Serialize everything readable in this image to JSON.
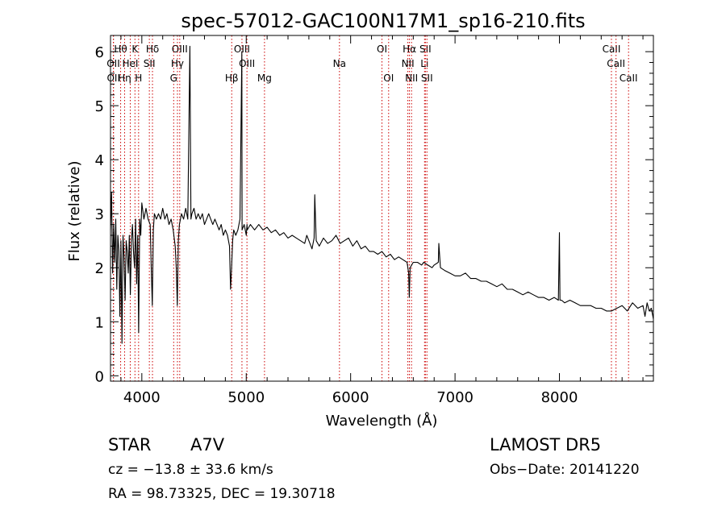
{
  "chart_data": {
    "type": "line",
    "title": "spec-57012-GAC100N17M1_sp16-210.fits",
    "xlabel": "Wavelength (Å)",
    "ylabel": "Flux (relative)",
    "xlim": [
      3700,
      8900
    ],
    "ylim": [
      -0.1,
      6.3
    ],
    "xticks": [
      4000,
      5000,
      6000,
      7000,
      8000
    ],
    "yticks": [
      0,
      1,
      2,
      3,
      4,
      5,
      6
    ],
    "grid": false,
    "line_color": "#000000",
    "marker_color": "#cc0000",
    "series": [
      {
        "x": [
          3700,
          3710,
          3720,
          3730,
          3740,
          3750,
          3760,
          3770,
          3780,
          3790,
          3800,
          3810,
          3820,
          3830,
          3840,
          3850,
          3860,
          3870,
          3880,
          3890,
          3900,
          3910,
          3920,
          3930,
          3940,
          3950,
          3960,
          3970,
          3980,
          3990,
          4000,
          4020,
          4040,
          4060,
          4080,
          4090,
          4100,
          4110,
          4120,
          4140,
          4160,
          4180,
          4200,
          4220,
          4240,
          4260,
          4280,
          4300,
          4320,
          4330,
          4340,
          4350,
          4360,
          4380,
          4400,
          4420,
          4440,
          4460,
          4470,
          4480,
          4500,
          4520,
          4540,
          4560,
          4580,
          4600,
          4620,
          4640,
          4660,
          4680,
          4700,
          4720,
          4740,
          4760,
          4780,
          4800,
          4820,
          4840,
          4850,
          4860,
          4870,
          4880,
          4900,
          4920,
          4940,
          4958,
          4960,
          4980,
          5000,
          5007,
          5010,
          5040,
          5080,
          5120,
          5160,
          5200,
          5240,
          5280,
          5320,
          5360,
          5400,
          5440,
          5480,
          5520,
          5560,
          5580,
          5600,
          5630,
          5650,
          5656,
          5670,
          5700,
          5740,
          5780,
          5820,
          5860,
          5900,
          5940,
          5980,
          6020,
          6060,
          6100,
          6140,
          6180,
          6220,
          6260,
          6300,
          6340,
          6380,
          6420,
          6460,
          6500,
          6540,
          6556,
          6562,
          6570,
          6600,
          6640,
          6680,
          6700,
          6740,
          6780,
          6800,
          6840,
          6845,
          6860,
          6900,
          6950,
          7000,
          7050,
          7100,
          7150,
          7200,
          7250,
          7300,
          7350,
          7400,
          7450,
          7500,
          7550,
          7600,
          7650,
          7700,
          7750,
          7800,
          7850,
          7900,
          7950,
          7990,
          8000,
          8005,
          8020,
          8050,
          8100,
          8150,
          8200,
          8250,
          8300,
          8350,
          8400,
          8450,
          8500,
          8550,
          8600,
          8650,
          8700,
          8750,
          8800,
          8820,
          8840,
          8860,
          8880,
          8900
        ],
        "y": [
          2.7,
          3.4,
          1.9,
          2.8,
          2.1,
          2.9,
          1.6,
          2.6,
          2.3,
          1.1,
          2.5,
          0.6,
          2.6,
          2.2,
          1.4,
          2.5,
          2.3,
          1.9,
          2.6,
          1.5,
          2.5,
          2.8,
          2.3,
          2.0,
          2.9,
          1.7,
          2.6,
          0.8,
          2.9,
          2.6,
          3.2,
          2.9,
          3.1,
          2.9,
          2.8,
          2.0,
          1.3,
          2.7,
          3.0,
          2.9,
          3.0,
          2.9,
          3.1,
          2.9,
          3.0,
          2.8,
          2.9,
          2.7,
          2.4,
          2.0,
          1.3,
          2.5,
          2.8,
          3.0,
          2.9,
          3.1,
          2.9,
          6.1,
          2.9,
          3.0,
          3.1,
          2.9,
          3.0,
          2.9,
          3.0,
          2.8,
          2.9,
          3.0,
          2.9,
          2.8,
          2.9,
          2.8,
          2.7,
          2.8,
          2.6,
          2.7,
          2.6,
          2.4,
          1.6,
          2.0,
          2.5,
          2.7,
          2.6,
          2.7,
          2.9,
          6.0,
          2.7,
          2.8,
          2.6,
          2.8,
          2.7,
          2.8,
          2.7,
          2.8,
          2.7,
          2.75,
          2.65,
          2.7,
          2.6,
          2.65,
          2.55,
          2.6,
          2.55,
          2.5,
          2.45,
          2.6,
          2.5,
          2.35,
          2.55,
          3.35,
          2.5,
          2.4,
          2.55,
          2.45,
          2.5,
          2.6,
          2.45,
          2.5,
          2.55,
          2.4,
          2.5,
          2.35,
          2.4,
          2.3,
          2.3,
          2.25,
          2.3,
          2.2,
          2.25,
          2.15,
          2.2,
          2.15,
          2.1,
          1.9,
          1.45,
          2.0,
          2.1,
          2.1,
          2.05,
          2.1,
          2.05,
          2.0,
          2.05,
          2.1,
          2.45,
          2.0,
          1.95,
          1.9,
          1.85,
          1.85,
          1.9,
          1.8,
          1.8,
          1.75,
          1.75,
          1.7,
          1.65,
          1.7,
          1.6,
          1.6,
          1.55,
          1.5,
          1.55,
          1.5,
          1.45,
          1.45,
          1.4,
          1.45,
          1.4,
          2.65,
          1.4,
          1.4,
          1.35,
          1.4,
          1.35,
          1.3,
          1.3,
          1.3,
          1.25,
          1.25,
          1.2,
          1.2,
          1.25,
          1.3,
          1.2,
          1.35,
          1.25,
          1.3,
          1.1,
          1.35,
          1.2,
          1.25,
          1.05
        ]
      }
    ],
    "line_markers": [
      {
        "label": "Hθ",
        "x": 3797,
        "row": 0
      },
      {
        "label": "K",
        "x": 3934,
        "row": 0
      },
      {
        "label": "Hδ",
        "x": 4102,
        "row": 0
      },
      {
        "label": "OIII",
        "x": 4363,
        "row": 0
      },
      {
        "label": "OIII",
        "x": 4959,
        "row": 0
      },
      {
        "label": "OI",
        "x": 6300,
        "row": 0
      },
      {
        "label": "Hα",
        "x": 6563,
        "row": 0
      },
      {
        "label": "SII",
        "x": 6716,
        "row": 0
      },
      {
        "label": "CaII",
        "x": 8498,
        "row": 0
      },
      {
        "label": "OII",
        "x": 3727,
        "row": 1
      },
      {
        "label": "HeI",
        "x": 3889,
        "row": 1
      },
      {
        "label": "SII",
        "x": 4072,
        "row": 1
      },
      {
        "label": "Hγ",
        "x": 4341,
        "row": 1
      },
      {
        "label": "OIII",
        "x": 5007,
        "row": 1
      },
      {
        "label": "Na",
        "x": 5893,
        "row": 1
      },
      {
        "label": "NII",
        "x": 6548,
        "row": 1
      },
      {
        "label": "Li",
        "x": 6708,
        "row": 1
      },
      {
        "label": "CaII",
        "x": 8542,
        "row": 1
      },
      {
        "label": "OII",
        "x": 3729,
        "row": 2
      },
      {
        "label": "Hη",
        "x": 3835,
        "row": 2
      },
      {
        "label": "H",
        "x": 3969,
        "row": 2
      },
      {
        "label": "G",
        "x": 4305,
        "row": 2
      },
      {
        "label": "Hβ",
        "x": 4861,
        "row": 2
      },
      {
        "label": "Mg",
        "x": 5175,
        "row": 2
      },
      {
        "label": "OI",
        "x": 6364,
        "row": 2
      },
      {
        "label": "NII",
        "x": 6583,
        "row": 2
      },
      {
        "label": "SII",
        "x": 6731,
        "row": 2
      },
      {
        "label": "CaII",
        "x": 8662,
        "row": 2
      }
    ]
  },
  "info": {
    "object_class": "STAR",
    "subclass": "A7V",
    "cz": "cz = −13.8 ± 33.6 km/s",
    "radec": "RA =  98.73325, DEC =  19.30718",
    "survey": "LAMOST  DR5",
    "obs_date": "Obs−Date: 20141220"
  }
}
